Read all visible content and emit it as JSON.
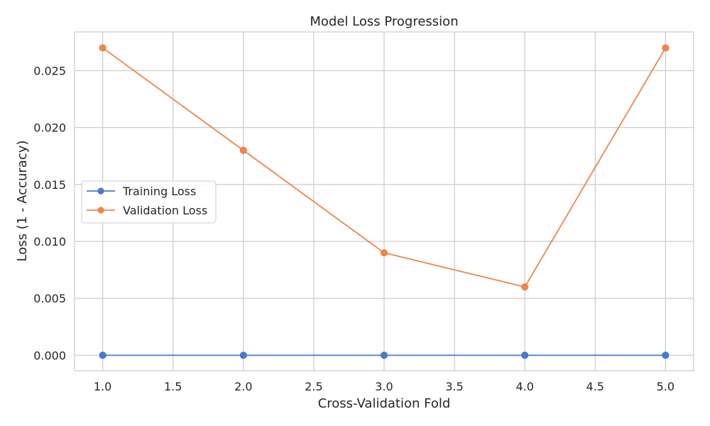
{
  "chart_data": {
    "type": "line",
    "title": "Model Loss Progression",
    "xlabel": "Cross-Validation Fold",
    "ylabel": "Loss (1 - Accuracy)",
    "x": [
      1,
      2,
      3,
      4,
      5
    ],
    "xlim": [
      0.8,
      5.2
    ],
    "ylim": [
      -0.00135,
      0.0284
    ],
    "xticks": [
      1.0,
      1.5,
      2.0,
      2.5,
      3.0,
      3.5,
      4.0,
      4.5,
      5.0
    ],
    "xtick_labels": [
      "1.0",
      "1.5",
      "2.0",
      "2.5",
      "3.0",
      "3.5",
      "4.0",
      "4.5",
      "5.0"
    ],
    "yticks": [
      0.0,
      0.005,
      0.01,
      0.015,
      0.02,
      0.025
    ],
    "ytick_labels": [
      "0.000",
      "0.005",
      "0.010",
      "0.015",
      "0.020",
      "0.025"
    ],
    "grid": true,
    "legend_position": "center-left",
    "series": [
      {
        "name": "Training Loss",
        "color": "#4878d0",
        "values": [
          0.0,
          0.0,
          0.0,
          0.0,
          0.0
        ]
      },
      {
        "name": "Validation Loss",
        "color": "#ee854a",
        "values": [
          0.027,
          0.018,
          0.009,
          0.006,
          0.027
        ]
      }
    ]
  }
}
